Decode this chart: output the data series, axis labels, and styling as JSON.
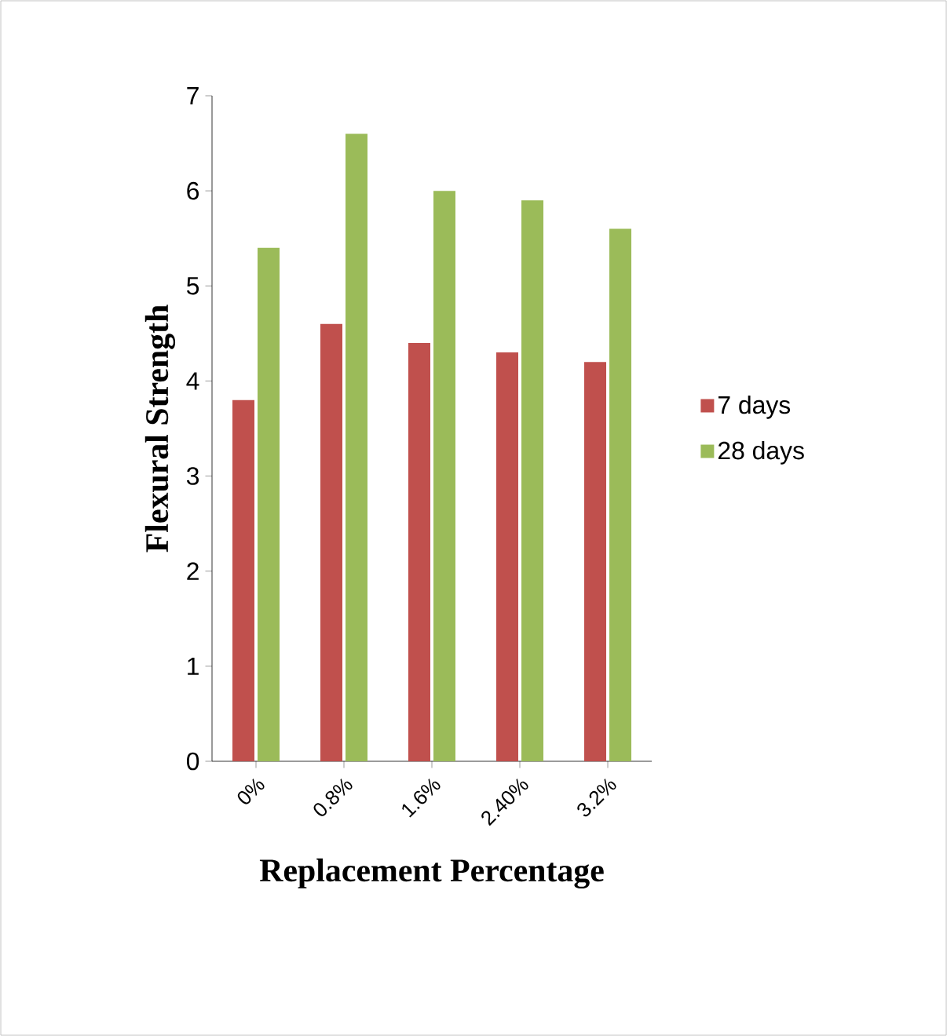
{
  "chart_data": {
    "type": "bar",
    "xlabel": "Replacement Percentage",
    "ylabel": "Flexural Strength",
    "categories": [
      "0%",
      "0.8%",
      "1.6%",
      "2.40%",
      "3.2%"
    ],
    "series": [
      {
        "name": "7 days",
        "color": "#c0504d",
        "values": [
          3.8,
          4.6,
          4.4,
          4.3,
          4.2
        ]
      },
      {
        "name": "28 days",
        "color": "#9bbb59",
        "values": [
          5.4,
          6.6,
          6.0,
          5.9,
          5.6
        ]
      }
    ],
    "ylim": [
      0,
      7
    ],
    "yticks": [
      0,
      1,
      2,
      3,
      4,
      5,
      6,
      7
    ],
    "legend": "right"
  }
}
